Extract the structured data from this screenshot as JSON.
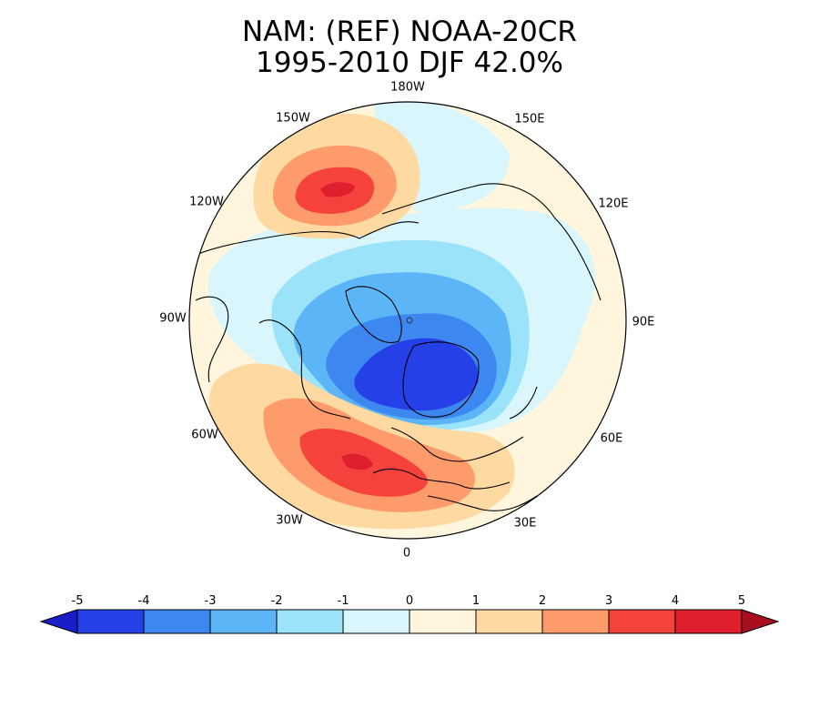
{
  "title": {
    "line1": "NAM: (REF) NOAA-20CR",
    "line2": "1995-2010 DJF 42.0%"
  },
  "map": {
    "projection": "north polar stereographic",
    "variable": "NAM pattern",
    "longitude_labels": {
      "lon_180W": "180W",
      "lon_150W": "150W",
      "lon_150E": "150E",
      "lon_120W": "120W",
      "lon_120E": "120E",
      "lon_90W": "90W",
      "lon_90E": "90E",
      "lon_60W": "60W",
      "lon_60E": "60E",
      "lon_30W": "30W",
      "lon_30E": "30E",
      "lon_0": "0"
    },
    "features": [
      {
        "name": "Arctic negative center",
        "level": -5,
        "region": "Arctic / northern Eurasia"
      },
      {
        "name": "North Pacific positive center",
        "level": 4,
        "region": "Gulf of Alaska"
      },
      {
        "name": "North Atlantic positive center",
        "level": 4,
        "region": "mid-latitude North Atlantic / Europe"
      }
    ]
  },
  "colorbar": {
    "ticks": [
      "-5",
      "-4",
      "-3",
      "-2",
      "-1",
      "0",
      "1",
      "2",
      "3",
      "4",
      "5"
    ],
    "colors": [
      "#2440e6",
      "#3d87f0",
      "#5bb5f7",
      "#9be3f9",
      "#d9f6fd",
      "#fff6dd",
      "#fed9a2",
      "#fd9b6b",
      "#f5423d",
      "#df1f2e"
    ],
    "under_color": "#1a1ec9",
    "over_color": "#a80f21"
  }
}
